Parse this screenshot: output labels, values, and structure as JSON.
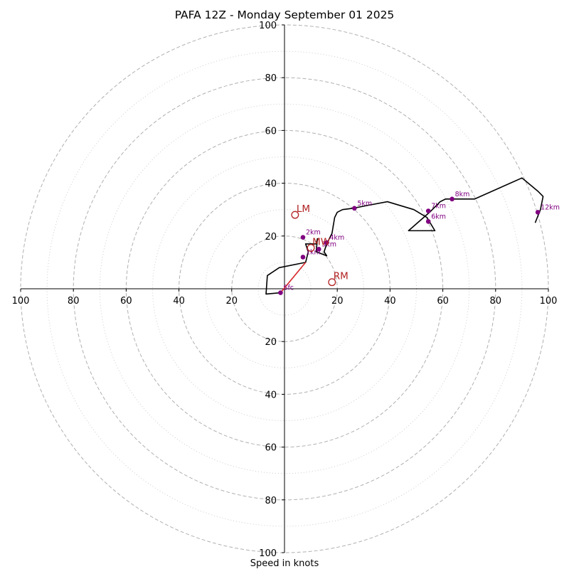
{
  "chart_data": {
    "type": "hodograph",
    "title": "PAFA 12Z - Monday September 01 2025",
    "xlabel": "Speed in knots",
    "range": [
      0,
      100
    ],
    "ring_major": [
      20,
      40,
      60,
      80,
      100
    ],
    "ring_minor": [
      10,
      30,
      50,
      70,
      90
    ],
    "x_tick_labels": [
      "100",
      "80",
      "60",
      "40",
      "20",
      "20",
      "40",
      "60",
      "80",
      "100"
    ],
    "y_tick_labels": [
      "100",
      "80",
      "60",
      "40",
      "20",
      "20",
      "40",
      "60",
      "80",
      "100"
    ],
    "hodograph_trace": [
      [
        -1.5,
        -1.5
      ],
      [
        -7,
        -2
      ],
      [
        -6.5,
        5
      ],
      [
        -2,
        8
      ],
      [
        8,
        10
      ],
      [
        9,
        14
      ],
      [
        8,
        17
      ],
      [
        12,
        17
      ],
      [
        12.5,
        19
      ],
      [
        12,
        14
      ],
      [
        16,
        12.5
      ],
      [
        15,
        14
      ],
      [
        16,
        17
      ],
      [
        18,
        21
      ],
      [
        19,
        27
      ],
      [
        20,
        29
      ],
      [
        22,
        30
      ],
      [
        26,
        30.5
      ],
      [
        31,
        31.5
      ],
      [
        39,
        33
      ],
      [
        49,
        30
      ],
      [
        54,
        27
      ],
      [
        57,
        22
      ],
      [
        47,
        22
      ],
      [
        55,
        29
      ],
      [
        59,
        33
      ],
      [
        61,
        34
      ],
      [
        72,
        34
      ],
      [
        90,
        42
      ],
      [
        96,
        37
      ],
      [
        98,
        35
      ],
      [
        97,
        30
      ],
      [
        95,
        25
      ]
    ],
    "surface_to_1km": [
      [
        -1.5,
        -1.5
      ],
      [
        8,
        10
      ]
    ],
    "height_markers": [
      {
        "label": "Sfc",
        "u": -1.5,
        "v": -1.5
      },
      {
        "label": "1km",
        "u": 7,
        "v": 12
      },
      {
        "label": "2km",
        "u": 7,
        "v": 19.5
      },
      {
        "label": "3km",
        "u": 13,
        "v": 15
      },
      {
        "label": "4km",
        "u": 16,
        "v": 17.5
      },
      {
        "label": "5km",
        "u": 26.5,
        "v": 30.5
      },
      {
        "label": "6km",
        "u": 54.5,
        "v": 25.5
      },
      {
        "label": "7km",
        "u": 54.5,
        "v": 29.5
      },
      {
        "label": "8km",
        "u": 63.5,
        "v": 34
      },
      {
        "label": "12km",
        "u": 96,
        "v": 29
      }
    ],
    "storm_motions": [
      {
        "label": "LM",
        "u": 4,
        "v": 28
      },
      {
        "label": "RM",
        "u": 18,
        "v": 2.5
      },
      {
        "label": "MW",
        "u": 10,
        "v": 15.5
      }
    ],
    "colors": {
      "trace": "#000000",
      "low_level": "#d62728",
      "marker": "#800080",
      "storm": "#b22222",
      "grid": "#b0b0b0"
    }
  }
}
